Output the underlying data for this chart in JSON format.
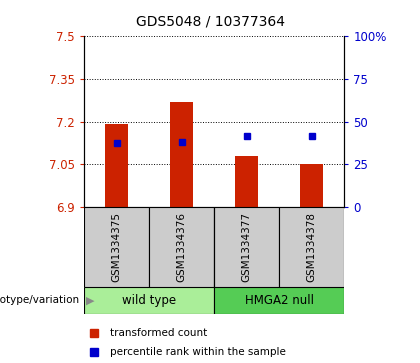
{
  "title": "GDS5048 / 10377364",
  "samples": [
    "GSM1334375",
    "GSM1334376",
    "GSM1334377",
    "GSM1334378"
  ],
  "bar_values": [
    7.19,
    7.27,
    7.08,
    7.05
  ],
  "blue_marker_values": [
    7.125,
    7.13,
    7.15,
    7.15
  ],
  "bar_bottom": 6.9,
  "ylim_left": [
    6.9,
    7.5
  ],
  "yticks_left": [
    6.9,
    7.05,
    7.2,
    7.35,
    7.5
  ],
  "ylim_right": [
    0,
    100
  ],
  "yticks_right": [
    0,
    25,
    50,
    75,
    100
  ],
  "yticklabels_right": [
    "0",
    "25",
    "50",
    "75",
    "100%"
  ],
  "bar_color": "#cc2200",
  "marker_color": "#0000cc",
  "groups": [
    {
      "label": "wild type",
      "indices": [
        0,
        1
      ],
      "color": "#aaee99"
    },
    {
      "label": "HMGA2 null",
      "indices": [
        2,
        3
      ],
      "color": "#55cc55"
    }
  ],
  "group_label_prefix": "genotype/variation",
  "legend_items": [
    {
      "label": "transformed count",
      "color": "#cc2200"
    },
    {
      "label": "percentile rank within the sample",
      "color": "#0000cc"
    }
  ],
  "left_tick_color": "#cc2200",
  "right_tick_color": "#0000cc",
  "bar_width": 0.35,
  "background_label": "#cccccc",
  "grid_color": "#000000"
}
